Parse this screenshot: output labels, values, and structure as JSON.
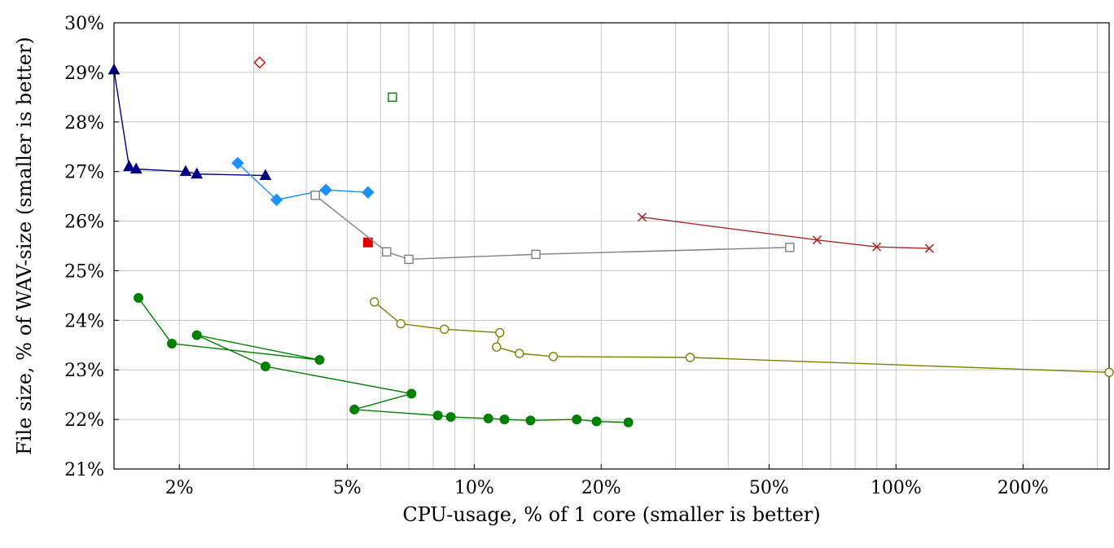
{
  "chart_data": {
    "type": "scatter",
    "title": "",
    "xlabel": "CPU-usage, % of 1 core (smaller is better)",
    "ylabel": "File size, % of WAV-size (smaller is better)",
    "x_scale": "log",
    "xlim": [
      1.4,
      320
    ],
    "ylim": [
      21,
      30
    ],
    "x_ticks": [
      {
        "value": 2,
        "label": "2%"
      },
      {
        "value": 5,
        "label": "5%"
      },
      {
        "value": 10,
        "label": "10%"
      },
      {
        "value": 20,
        "label": "20%"
      },
      {
        "value": 50,
        "label": "50%"
      },
      {
        "value": 100,
        "label": "100%"
      },
      {
        "value": 200,
        "label": "200%"
      }
    ],
    "y_ticks": [
      {
        "value": 21,
        "label": "21%"
      },
      {
        "value": 22,
        "label": "22%"
      },
      {
        "value": 23,
        "label": "23%"
      },
      {
        "value": 24,
        "label": "24%"
      },
      {
        "value": 25,
        "label": "25%"
      },
      {
        "value": 26,
        "label": "26%"
      },
      {
        "value": 27,
        "label": "27%"
      },
      {
        "value": 28,
        "label": "28%"
      },
      {
        "value": 29,
        "label": "29%"
      },
      {
        "value": 30,
        "label": "30%"
      }
    ],
    "grid": true,
    "legend": "none",
    "series": [
      {
        "color": "#000080",
        "marker": "triangle-filled",
        "line": true,
        "points": [
          [
            1.4,
            29.05
          ],
          [
            1.52,
            27.1
          ],
          [
            1.58,
            27.05
          ],
          [
            2.07,
            27.0
          ],
          [
            2.2,
            26.95
          ],
          [
            3.2,
            26.92
          ]
        ]
      },
      {
        "color": "#1e90ff",
        "marker": "diamond-filled",
        "line": true,
        "points": [
          [
            2.75,
            27.17
          ],
          [
            3.4,
            26.43
          ],
          [
            4.45,
            26.63
          ],
          [
            5.6,
            26.58
          ]
        ]
      },
      {
        "color": "#e00000",
        "marker": "diamond-open",
        "line": false,
        "points": [
          [
            3.1,
            29.2
          ]
        ]
      },
      {
        "color": "#008000",
        "marker": "square-open",
        "line": false,
        "points": [
          [
            6.4,
            28.5
          ]
        ]
      },
      {
        "color": "#e00000",
        "marker": "square-filled",
        "line": false,
        "points": [
          [
            5.6,
            25.57
          ]
        ]
      },
      {
        "color": "#808080",
        "marker": "square-open",
        "line": true,
        "points": [
          [
            4.2,
            26.52
          ],
          [
            6.2,
            25.38
          ],
          [
            7.0,
            25.23
          ],
          [
            14.0,
            25.33
          ],
          [
            56.0,
            25.47
          ]
        ]
      },
      {
        "color": "#a52a2a",
        "marker": "cross",
        "line": true,
        "points": [
          [
            25.0,
            26.08
          ],
          [
            65.0,
            25.62
          ],
          [
            90.0,
            25.48
          ],
          [
            120.0,
            25.45
          ]
        ]
      },
      {
        "color": "#808000",
        "marker": "circle-open",
        "line": true,
        "points": [
          [
            5.8,
            24.37
          ],
          [
            6.7,
            23.93
          ],
          [
            8.5,
            23.82
          ],
          [
            11.5,
            23.75
          ],
          [
            11.3,
            23.46
          ],
          [
            12.8,
            23.33
          ],
          [
            15.4,
            23.27
          ],
          [
            32.5,
            23.25
          ],
          [
            320.0,
            22.95
          ]
        ]
      },
      {
        "color": "#008000",
        "marker": "circle-filled",
        "line": true,
        "points": [
          [
            1.6,
            24.45
          ],
          [
            1.92,
            23.53
          ],
          [
            4.3,
            23.2
          ],
          [
            2.2,
            23.7
          ],
          [
            3.2,
            23.07
          ],
          [
            7.1,
            22.52
          ],
          [
            5.2,
            22.2
          ],
          [
            8.2,
            22.08
          ],
          [
            8.8,
            22.05
          ],
          [
            10.8,
            22.02
          ],
          [
            11.8,
            22.0
          ],
          [
            13.6,
            21.98
          ],
          [
            17.5,
            22.0
          ],
          [
            19.5,
            21.96
          ],
          [
            23.2,
            21.94
          ]
        ]
      }
    ]
  }
}
